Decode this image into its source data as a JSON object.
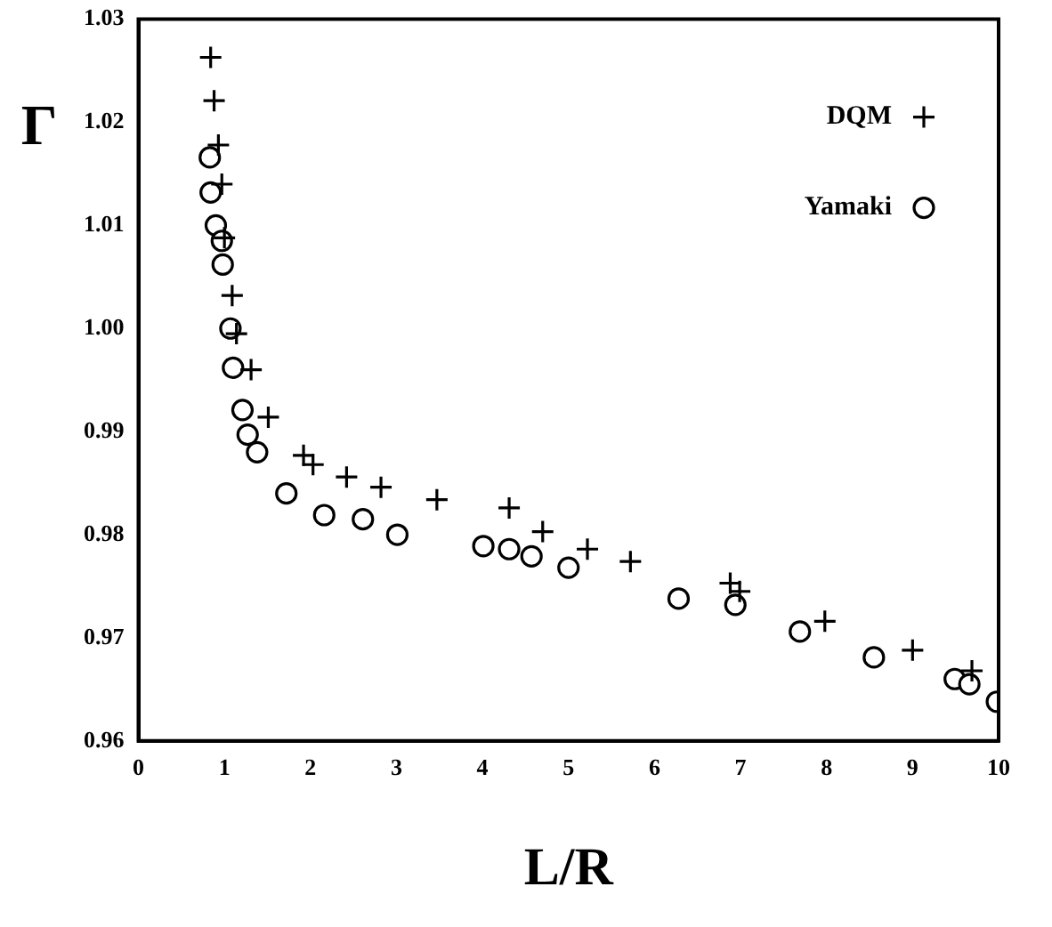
{
  "chart_data": {
    "type": "scatter",
    "xlabel": "L/R",
    "ylabel": "Γ",
    "xlim": [
      0,
      10
    ],
    "xticks": [
      0,
      1,
      2,
      3,
      4,
      5,
      6,
      7,
      8,
      9,
      10
    ],
    "ylim": [
      0.96,
      1.03
    ],
    "yticks": [
      {
        "value": 0.96,
        "label": "0.96"
      },
      {
        "value": 0.97,
        "label": "0.97"
      },
      {
        "value": 0.98,
        "label": "0.98"
      },
      {
        "value": 0.99,
        "label": "0.99"
      },
      {
        "value": 1.0,
        "label": "1.00"
      },
      {
        "value": 1.01,
        "label": "1.01"
      },
      {
        "value": 1.02,
        "label": "1.02"
      },
      {
        "value": 1.03,
        "label": "1.03"
      }
    ],
    "grid": false,
    "legend": "top right",
    "series": [
      {
        "name": "DQM",
        "color": "#000000",
        "marker": "cross",
        "x": [
          0.84,
          0.88,
          0.93,
          0.97,
          1.0,
          1.09,
          1.14,
          1.31,
          1.51,
          1.92,
          2.03,
          2.42,
          2.82,
          3.47,
          4.31,
          4.7,
          5.22,
          5.72,
          6.88,
          6.99,
          7.98,
          9.0,
          9.69
        ],
        "values": [
          1.0263,
          1.0221,
          1.0178,
          1.014,
          1.0088,
          1.0032,
          0.9995,
          0.996,
          0.9914,
          0.9877,
          0.9868,
          0.9856,
          0.9846,
          0.9834,
          0.9826,
          0.9803,
          0.9786,
          0.9774,
          0.9753,
          0.9745,
          0.9716,
          0.9688,
          0.9668
        ]
      },
      {
        "name": "Yamaki",
        "color": "#000000",
        "marker": "circle",
        "x": [
          0.83,
          0.84,
          0.9,
          0.97,
          0.98,
          1.07,
          1.1,
          1.21,
          1.27,
          1.38,
          1.72,
          2.16,
          2.61,
          3.01,
          4.01,
          4.31,
          4.57,
          5.0,
          6.28,
          6.94,
          7.69,
          8.55,
          9.49,
          9.66,
          9.98
        ],
        "values": [
          1.0166,
          1.0132,
          1.01,
          1.0085,
          1.0062,
          1.0,
          0.9962,
          0.9921,
          0.9897,
          0.988,
          0.984,
          0.9819,
          0.9815,
          0.98,
          0.9789,
          0.9786,
          0.9779,
          0.9768,
          0.9738,
          0.9732,
          0.9706,
          0.9681,
          0.966,
          0.9655,
          0.9638
        ]
      }
    ]
  }
}
